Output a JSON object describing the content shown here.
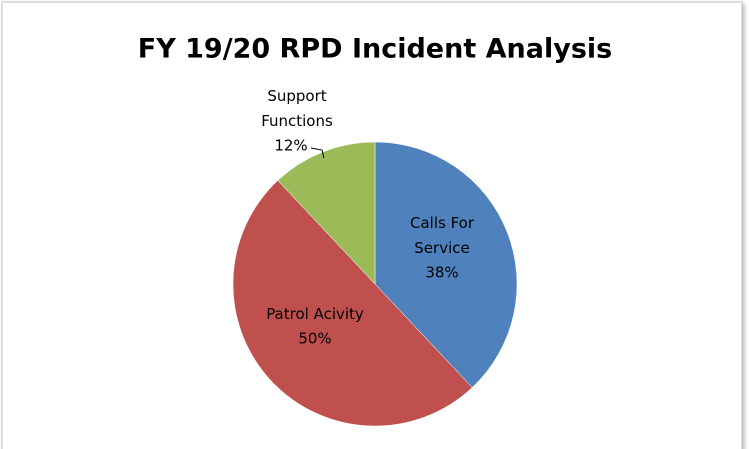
{
  "chart_data": {
    "type": "pie",
    "title": "FY 19/20 RPD Incident Analysis",
    "categories": [
      "Calls For Service",
      "Patrol Acivity",
      "Support Functions"
    ],
    "values": [
      38,
      50,
      12
    ],
    "value_labels": [
      "38%",
      "50%",
      "12%"
    ],
    "colors": [
      "#4f81bd",
      "#c0504d",
      "#9bbb59"
    ]
  }
}
